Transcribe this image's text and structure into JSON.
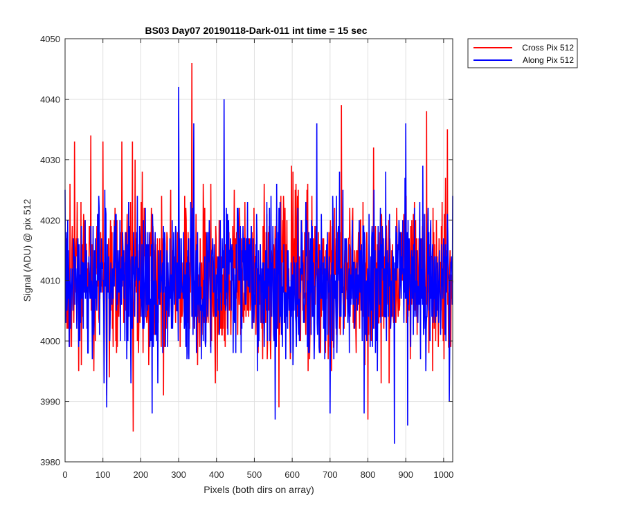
{
  "chart_data": {
    "type": "line",
    "title": "BS03 Day07 20190118-Dark-011 int time = 15 sec",
    "xlabel": "Pixels (both dirs on array)",
    "ylabel": "Signal (ADU) @ pix 512",
    "xlim": [
      0,
      1024
    ],
    "ylim": [
      3980,
      4050
    ],
    "xticks": [
      0,
      100,
      200,
      300,
      400,
      500,
      600,
      700,
      800,
      900,
      1000
    ],
    "yticks": [
      3980,
      3990,
      4000,
      4010,
      4020,
      4030,
      4040,
      4050
    ],
    "grid": true,
    "legend_position": "outside-top-right",
    "series": [
      {
        "name": "Cross Pix 512",
        "color": "#ff0000",
        "mean": 4010,
        "x": [
          0,
          25,
          68,
          100,
          110,
          150,
          180,
          185,
          200,
          255,
          260,
          335,
          340,
          500,
          565,
          600,
          730,
          735,
          800,
          815,
          900,
          955,
          960,
          1010,
          1015,
          1024
        ],
        "y": [
          4008,
          4033,
          4034,
          4033,
          3991,
          4033,
          3985,
          4030,
          4012,
          4024,
          3991,
          4046,
          4008,
          4010,
          3989,
          4012,
          4039,
          4005,
          3987,
          4032,
          4010,
          4038,
          4008,
          4035,
          4000,
          4010
        ]
      },
      {
        "name": "Along Pix 512",
        "color": "#0000ff",
        "mean": 4010,
        "x": [
          0,
          105,
          110,
          190,
          225,
          230,
          300,
          305,
          340,
          420,
          425,
          555,
          560,
          665,
          670,
          700,
          725,
          790,
          795,
          870,
          875,
          900,
          905,
          1015,
          1024
        ],
        "y": [
          4025,
          4025,
          3989,
          4012,
          4006,
          3988,
          4042,
          4008,
          4036,
          4040,
          4006,
          3987,
          4010,
          4036,
          4008,
          3988,
          4028,
          3988,
          4008,
          3983,
          4010,
          4036,
          3986,
          3990,
          4024
        ]
      }
    ]
  }
}
